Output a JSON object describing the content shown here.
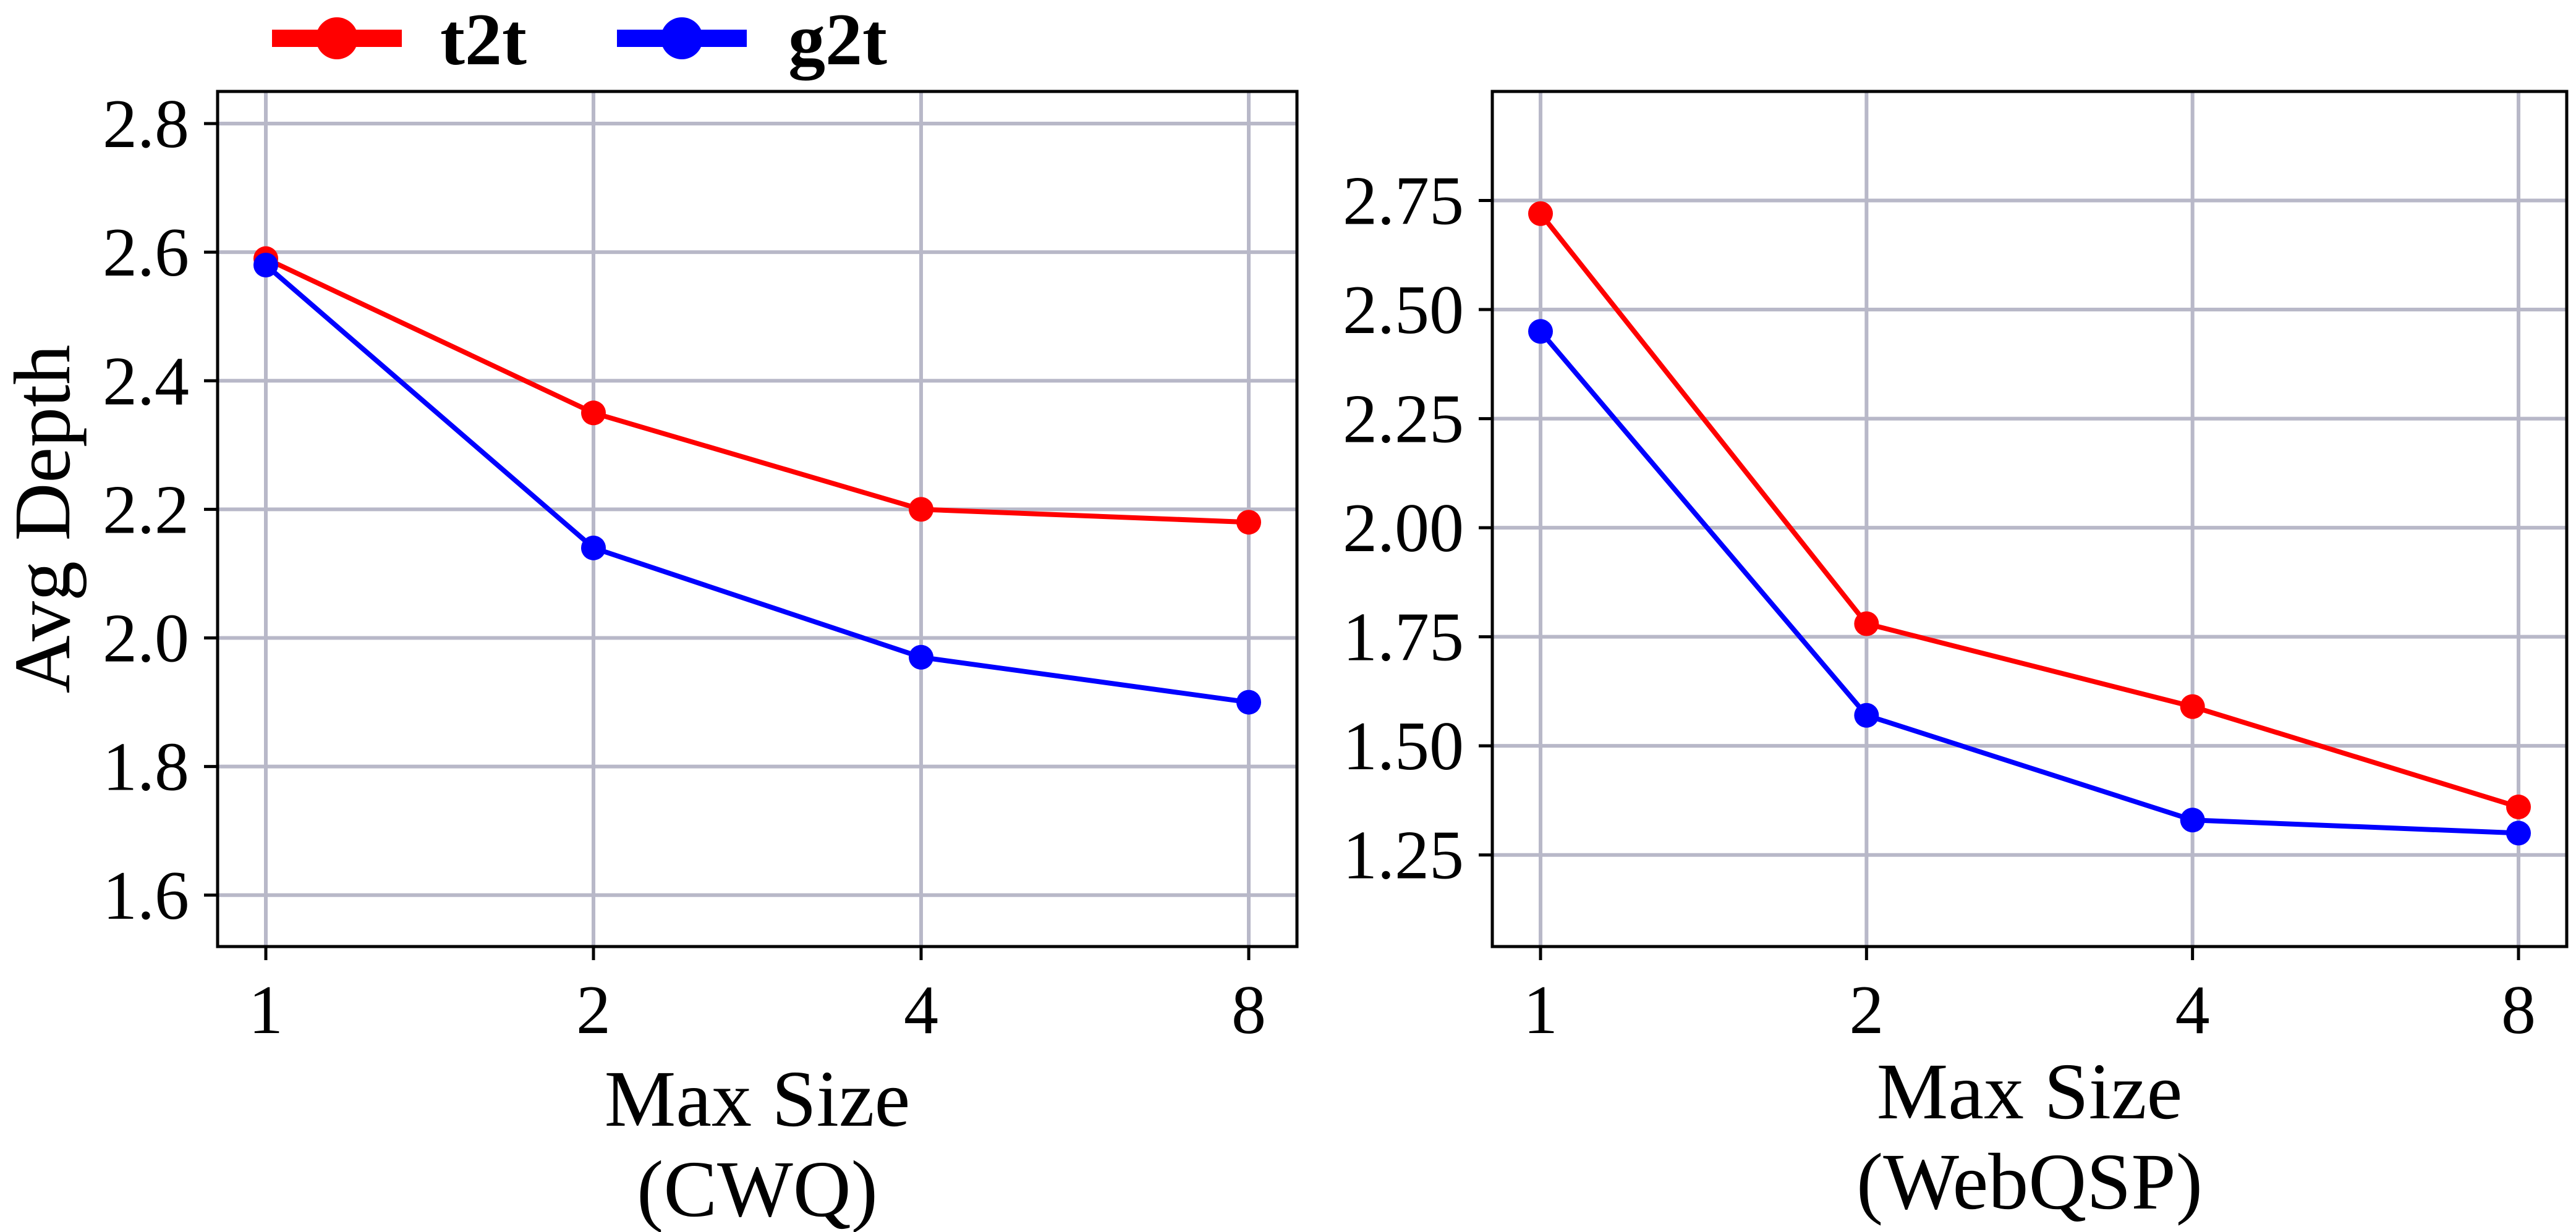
{
  "legend": [
    {
      "name": "t2t",
      "color": "#ff0000"
    },
    {
      "name": "g2t",
      "color": "#0000ff"
    }
  ],
  "chart_data": [
    {
      "type": "line",
      "categories": [
        "1",
        "2",
        "4",
        "8"
      ],
      "xlabel": "Max Size",
      "xlabel2": "(CWQ)",
      "ylabel": "Avg Depth",
      "ylim": [
        1.52,
        2.85
      ],
      "yticks": [
        1.6,
        1.8,
        2.0,
        2.2,
        2.4,
        2.6,
        2.8
      ],
      "yticklabels": [
        "1.6",
        "1.8",
        "2.0",
        "2.2",
        "2.4",
        "2.6",
        "2.8"
      ],
      "grid": true,
      "series": [
        {
          "name": "t2t",
          "color": "#ff0000",
          "values": [
            2.59,
            2.35,
            2.2,
            2.18
          ]
        },
        {
          "name": "g2t",
          "color": "#0000ff",
          "values": [
            2.58,
            2.14,
            1.97,
            1.9
          ]
        }
      ]
    },
    {
      "type": "line",
      "categories": [
        "1",
        "2",
        "4",
        "8"
      ],
      "xlabel": "Max Size",
      "xlabel2": "(WebQSP)",
      "ylabel": "",
      "ylim": [
        1.04,
        3.0
      ],
      "yticks": [
        1.25,
        1.5,
        1.75,
        2.0,
        2.25,
        2.5,
        2.75
      ],
      "yticklabels": [
        "1.25",
        "1.50",
        "1.75",
        "2.00",
        "2.25",
        "2.50",
        "2.75"
      ],
      "grid": true,
      "series": [
        {
          "name": "t2t",
          "color": "#ff0000",
          "values": [
            2.72,
            1.78,
            1.59,
            1.36
          ]
        },
        {
          "name": "g2t",
          "color": "#0000ff",
          "values": [
            2.45,
            1.57,
            1.33,
            1.3
          ]
        }
      ]
    }
  ]
}
